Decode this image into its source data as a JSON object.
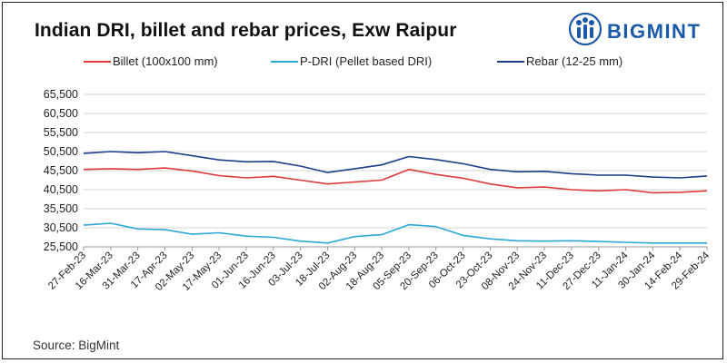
{
  "title": "Indian DRI, billet and rebar prices, Exw Raipur",
  "logo": {
    "text": "BIGMINT",
    "icon": "people-globe-icon",
    "color": "#1a5aa8"
  },
  "source": "Source: BigMint",
  "chart_data": {
    "type": "line",
    "title": "Indian DRI, billet and rebar prices, Exw Raipur",
    "xlabel": "",
    "ylabel": "",
    "ylim": [
      25500,
      65500
    ],
    "yticks": [
      "25,500",
      "30,500",
      "35,500",
      "40,500",
      "45,500",
      "50,500",
      "55,500",
      "60,500",
      "65,500"
    ],
    "ytick_values": [
      25500,
      30500,
      35500,
      40500,
      45500,
      50500,
      55500,
      60500,
      65500
    ],
    "grid": "horizontal",
    "legend_position": "top",
    "x": [
      "27-Feb-23",
      "16-Mar-23",
      "31-Mar-23",
      "17-Apr-23",
      "02-May-23",
      "17-May-23",
      "01-Jun-23",
      "16-Jun-23",
      "03-Jul-23",
      "18-Jul-23",
      "02-Aug-23",
      "18-Aug-23",
      "05-Sep-23",
      "20-Sep-23",
      "06-Oct-23",
      "23-Oct-23",
      "08-Nov-23",
      "24-Nov-23",
      "11-Dec-23",
      "27-Dec-23",
      "11-Jan-24",
      "30-Jan-24",
      "14-Feb-24",
      "29-Feb-24"
    ],
    "series": [
      {
        "name": "Billet (100x100 mm)",
        "color": "#e03a3a",
        "values": [
          45800,
          46000,
          45800,
          46200,
          45400,
          44200,
          43600,
          44000,
          43000,
          42000,
          42500,
          43000,
          45800,
          44500,
          43500,
          42000,
          41000,
          41200,
          40500,
          40200,
          40500,
          39700,
          39800,
          40200
        ]
      },
      {
        "name": "P-DRI (Pellet based DRI)",
        "color": "#2aa8d8",
        "values": [
          31200,
          31700,
          30200,
          30000,
          28800,
          29200,
          28300,
          28000,
          27000,
          26500,
          28200,
          28700,
          31300,
          30800,
          28500,
          27600,
          27100,
          27000,
          27100,
          26900,
          26700,
          26500,
          26500,
          26500
        ]
      },
      {
        "name": "Rebar (12-25 mm)",
        "color": "#1a3f8a",
        "values": [
          50000,
          50500,
          50200,
          50500,
          49400,
          48300,
          47800,
          47900,
          46700,
          45000,
          46000,
          47000,
          49200,
          48400,
          47300,
          45800,
          45200,
          45300,
          44700,
          44300,
          44300,
          43800,
          43600,
          44100
        ]
      }
    ]
  }
}
